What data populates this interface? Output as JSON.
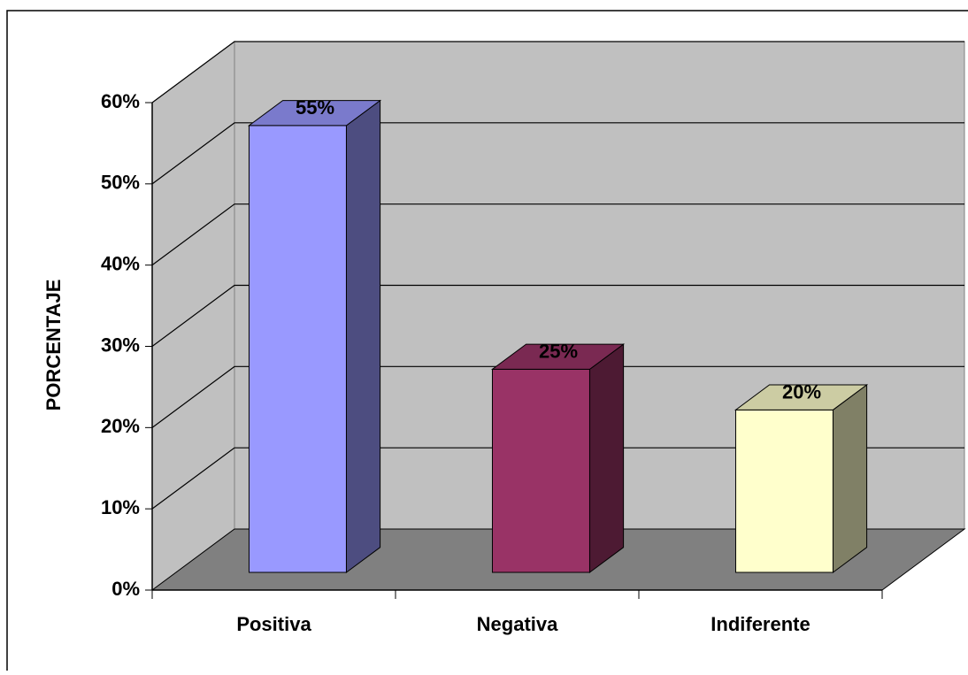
{
  "chart_data": {
    "type": "bar3d",
    "ylabel": "PORCENTAJE",
    "categories": [
      "Positiva",
      "Negativa",
      "Indiferente"
    ],
    "values": [
      55,
      25,
      20
    ],
    "value_labels": [
      "55%",
      "25%",
      "20%"
    ],
    "colors": [
      "#9999ff",
      "#993366",
      "#ffffcc"
    ],
    "ylim": [
      0,
      60
    ],
    "yticks": [
      {
        "value": 0,
        "label": "0%"
      },
      {
        "value": 10,
        "label": "10%"
      },
      {
        "value": 20,
        "label": "20%"
      },
      {
        "value": 30,
        "label": "30%"
      },
      {
        "value": 40,
        "label": "40%"
      },
      {
        "value": 50,
        "label": "50%"
      },
      {
        "value": 60,
        "label": "60%"
      }
    ],
    "grid": true
  }
}
